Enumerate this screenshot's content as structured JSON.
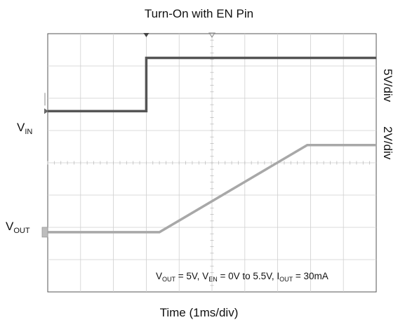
{
  "chart_data": {
    "type": "line",
    "title": "Turn-On with EN Pin",
    "xlabel": "Time (1ms/div)",
    "x_units": "ms",
    "grid": true,
    "divisions": {
      "x": 10,
      "y": 8
    },
    "xlim": [
      0,
      10
    ],
    "channels": [
      {
        "name": "VIN",
        "label_main": "V",
        "label_sub": "IN",
        "scale": "5V/div",
        "color": "#555555",
        "marker_level_div": 1.6,
        "x": [
          0,
          3.0,
          3.0,
          10
        ],
        "y_div": [
          1.6,
          1.6,
          3.25,
          3.25
        ]
      },
      {
        "name": "VOUT",
        "label_main": "V",
        "label_sub": "OUT",
        "scale": "2V/div",
        "color": "#a8a8a8",
        "marker_level_div": -2.15,
        "x": [
          0,
          3.4,
          7.9,
          10
        ],
        "y_div": [
          -2.15,
          -2.15,
          0.55,
          0.55
        ]
      }
    ],
    "annotation": {
      "parts": [
        {
          "t": "V",
          "sub": false
        },
        {
          "t": "OUT",
          "sub": true
        },
        {
          "t": " = 5V, V",
          "sub": false
        },
        {
          "t": "EN",
          "sub": true
        },
        {
          "t": " = 0V to 5.5V, I",
          "sub": false
        },
        {
          "t": "OUT",
          "sub": true
        },
        {
          "t": " = 30mA",
          "sub": false
        }
      ]
    },
    "trigger_time": 3.0,
    "delay_marker_time": 5.0
  }
}
